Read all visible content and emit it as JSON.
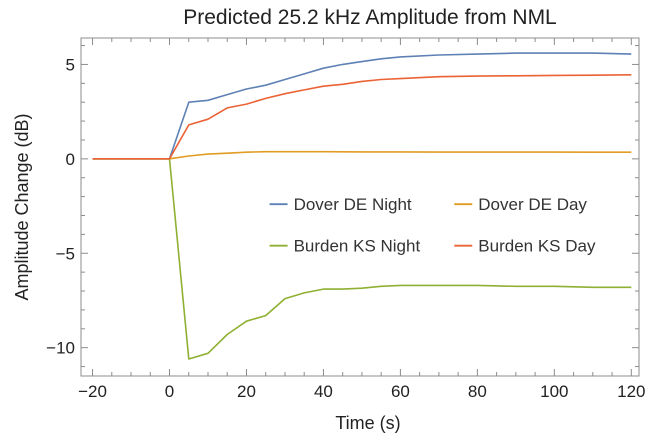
{
  "chart_data": {
    "type": "line",
    "title": "Predicted 25.2 kHz Amplitude from NML",
    "xlabel": "Time (s)",
    "ylabel": "Amplitude Change (dB)",
    "xlim": [
      -23,
      122
    ],
    "ylim": [
      -11.5,
      6.4
    ],
    "x_ticks": [
      -20,
      0,
      20,
      40,
      60,
      80,
      100,
      120
    ],
    "y_ticks": [
      -10,
      -5,
      0,
      5
    ],
    "x_minor_step": 5,
    "y_minor_step": 1,
    "grid": false,
    "legend_position": "inside-center-right",
    "series": [
      {
        "name": "Dover DE Night",
        "color": "#5e81b5",
        "x": [
          -20,
          -15,
          -10,
          -5,
          0,
          5,
          10,
          15,
          20,
          25,
          30,
          35,
          40,
          45,
          50,
          55,
          60,
          70,
          80,
          90,
          100,
          110,
          120
        ],
        "y": [
          0,
          0,
          0,
          0,
          0,
          3.0,
          3.1,
          3.4,
          3.7,
          3.9,
          4.2,
          4.5,
          4.8,
          5.0,
          5.15,
          5.3,
          5.4,
          5.5,
          5.55,
          5.6,
          5.6,
          5.6,
          5.55
        ]
      },
      {
        "name": "Dover DE Day",
        "color": "#e19c24",
        "x": [
          -20,
          -15,
          -10,
          -5,
          0,
          5,
          10,
          15,
          20,
          25,
          30,
          40,
          50,
          60,
          70,
          80,
          90,
          100,
          110,
          120
        ],
        "y": [
          0,
          0,
          0,
          0,
          0,
          0.15,
          0.25,
          0.3,
          0.35,
          0.38,
          0.38,
          0.38,
          0.37,
          0.37,
          0.36,
          0.36,
          0.36,
          0.36,
          0.35,
          0.35
        ]
      },
      {
        "name": "Burden KS Night",
        "color": "#8fb032",
        "x": [
          -20,
          -15,
          -10,
          -5,
          0,
          5,
          10,
          15,
          20,
          25,
          30,
          35,
          40,
          45,
          50,
          55,
          60,
          65,
          70,
          80,
          90,
          100,
          110,
          120
        ],
        "y": [
          0,
          0,
          0,
          0,
          0,
          -10.6,
          -10.3,
          -9.3,
          -8.6,
          -8.3,
          -7.4,
          -7.1,
          -6.9,
          -6.9,
          -6.85,
          -6.75,
          -6.7,
          -6.7,
          -6.7,
          -6.7,
          -6.75,
          -6.75,
          -6.8,
          -6.8
        ]
      },
      {
        "name": "Burden KS Day",
        "color": "#eb6235",
        "x": [
          -20,
          -15,
          -10,
          -5,
          0,
          5,
          10,
          15,
          20,
          25,
          30,
          35,
          40,
          45,
          50,
          55,
          60,
          70,
          80,
          90,
          100,
          110,
          120
        ],
        "y": [
          0,
          0,
          0,
          0,
          0,
          1.8,
          2.1,
          2.7,
          2.9,
          3.2,
          3.45,
          3.65,
          3.85,
          3.95,
          4.1,
          4.2,
          4.25,
          4.35,
          4.38,
          4.4,
          4.42,
          4.43,
          4.45
        ]
      }
    ]
  }
}
